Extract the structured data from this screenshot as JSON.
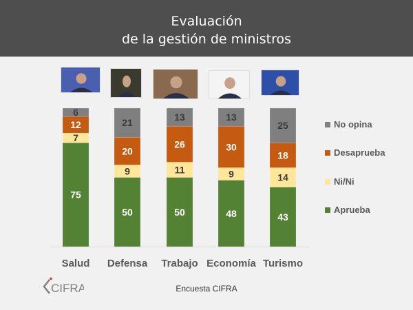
{
  "header": {
    "title_line1": "Evaluación",
    "title_line2": "de la gestión de ministros"
  },
  "photos": [
    {
      "name": "minister-photo-salud",
      "bg": "#4a5fb0"
    },
    {
      "name": "minister-photo-defensa",
      "bg": "#3a3a2e"
    },
    {
      "name": "minister-photo-trabajo",
      "bg": "#8a6a4e"
    },
    {
      "name": "minister-photo-economia",
      "bg": "#f4f4f4"
    },
    {
      "name": "minister-photo-turismo",
      "bg": "#2d4fa8"
    }
  ],
  "colors": {
    "aprueba": "#548235",
    "nini": "#ffe699",
    "desaprueba": "#c55a11",
    "no_opina": "#7f7f7f"
  },
  "chart_data": {
    "type": "bar",
    "stacked": true,
    "title": "Evaluación de la gestión de ministros",
    "categories": [
      "Salud",
      "Defensa",
      "Trabajo",
      "Economía",
      "Turismo"
    ],
    "series": [
      {
        "name": "Aprueba",
        "key": "aprueba",
        "values": [
          75,
          50,
          50,
          48,
          43
        ]
      },
      {
        "name": "Ni/Ni",
        "key": "nini",
        "values": [
          7,
          9,
          11,
          9,
          14
        ]
      },
      {
        "name": "Desaprueba",
        "key": "desaprueba",
        "values": [
          12,
          20,
          26,
          30,
          18
        ]
      },
      {
        "name": "No opina",
        "key": "no_opina",
        "values": [
          6,
          21,
          13,
          13,
          25
        ]
      }
    ],
    "legend_order": [
      "No opina",
      "Desaprueba",
      "Ni/Ni",
      "Aprueba"
    ],
    "legend_position": "right",
    "ylim": [
      0,
      100
    ],
    "xlabel": "",
    "ylabel": "",
    "grid": false
  },
  "footer": {
    "source": "Encuesta CIFRA",
    "logo_text": "CIFRA"
  }
}
